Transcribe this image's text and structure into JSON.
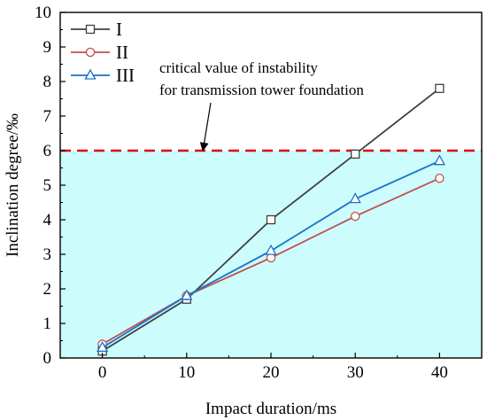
{
  "chart_data": {
    "type": "line",
    "title": "",
    "xlabel": "Impact duration/ms",
    "ylabel": "Inclination degree/‰",
    "xlim": [
      -5,
      45
    ],
    "ylim": [
      0,
      10
    ],
    "xticks": [
      0,
      10,
      20,
      30,
      40
    ],
    "yticks": [
      0,
      1,
      2,
      3,
      4,
      5,
      6,
      7,
      8,
      9,
      10
    ],
    "x": [
      0,
      10,
      20,
      30,
      40
    ],
    "series": [
      {
        "name": "I",
        "values": [
          0.2,
          1.7,
          4.0,
          5.9,
          7.8
        ],
        "color": "#404040",
        "marker": "square"
      },
      {
        "name": "II",
        "values": [
          0.4,
          1.8,
          2.9,
          4.1,
          5.2
        ],
        "color": "#c0504d",
        "marker": "circle"
      },
      {
        "name": "III",
        "values": [
          0.3,
          1.8,
          3.1,
          4.6,
          5.7
        ],
        "color": "#1a73c8",
        "marker": "triangle"
      }
    ],
    "threshold": {
      "value": 6,
      "color": "#e00000",
      "style": "dashed"
    },
    "shaded_region": {
      "from": 0,
      "to": 6,
      "color": "#ccfcfc"
    },
    "annotation": {
      "lines": [
        "critical value of instability",
        "for transmission tower foundation"
      ],
      "arrow_to": {
        "x": 12,
        "y": 6
      }
    },
    "legend": {
      "placement": "top-left"
    },
    "grid": false
  }
}
